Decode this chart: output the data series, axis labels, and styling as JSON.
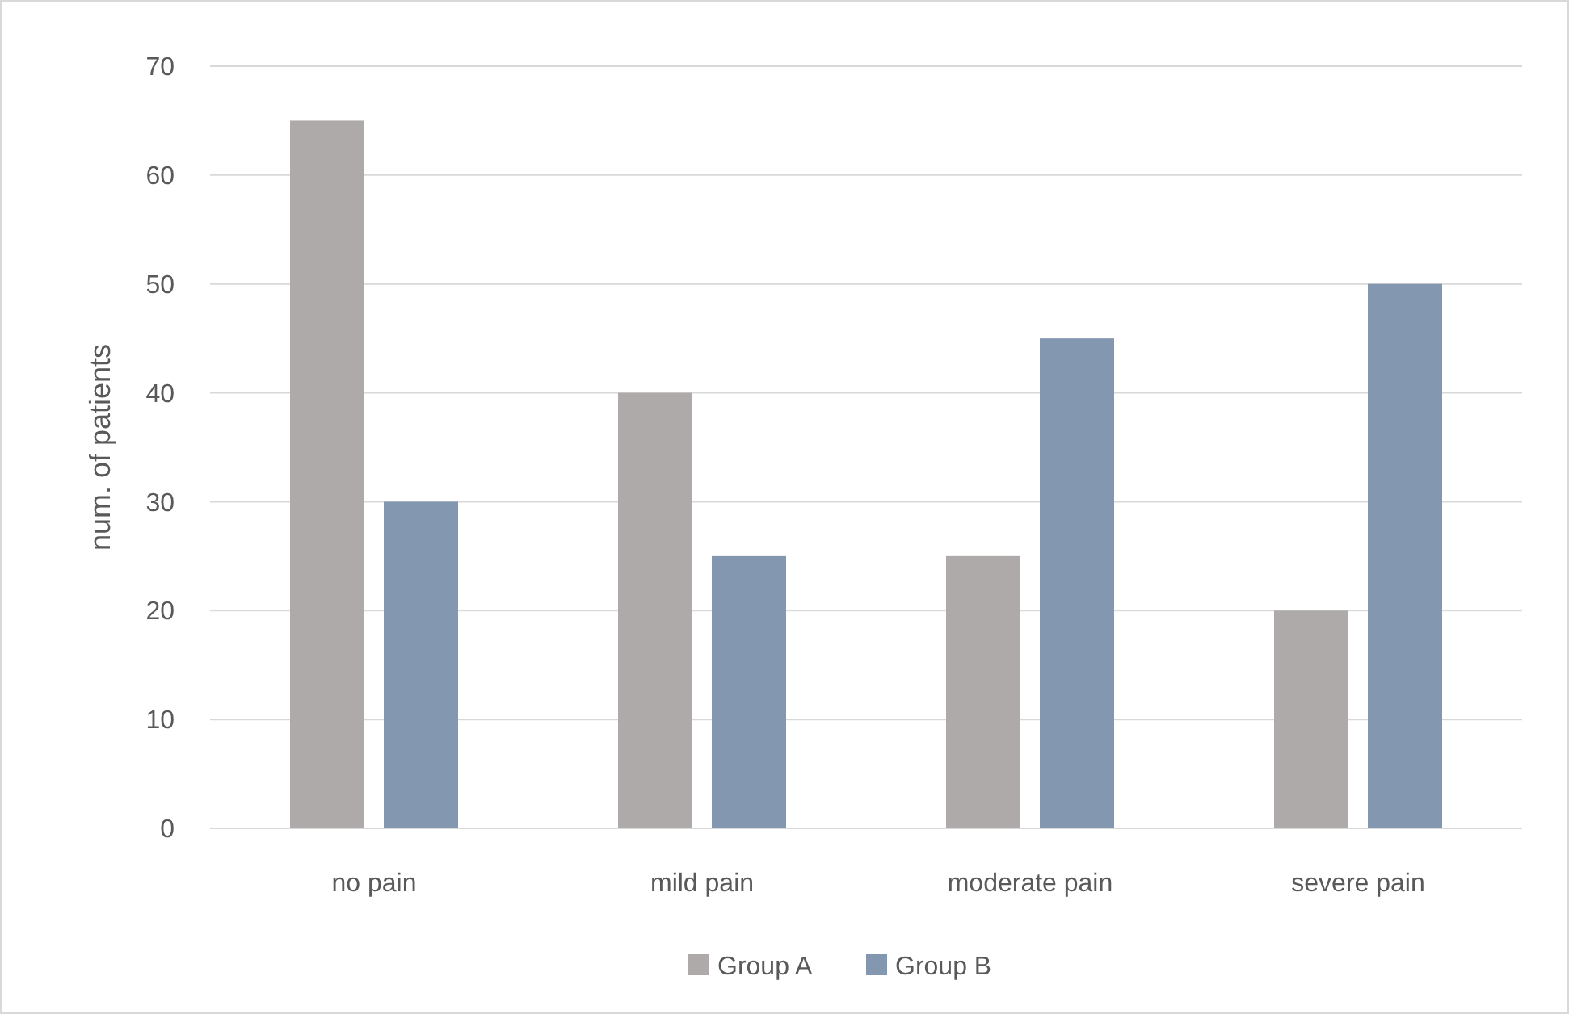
{
  "chart_data": {
    "type": "bar",
    "ylabel": "num. of patients",
    "categories": [
      "no pain",
      "mild pain",
      "moderate pain",
      "severe pain"
    ],
    "series": [
      {
        "name": "Group A",
        "color": "#aeaaaa",
        "values": [
          65,
          40,
          25,
          20
        ]
      },
      {
        "name": "Group B",
        "color": "#8497b0",
        "values": [
          30,
          25,
          45,
          50
        ]
      }
    ],
    "ylim": [
      0,
      70
    ],
    "yticks": [
      0,
      10,
      20,
      30,
      40,
      50,
      60,
      70
    ],
    "grid": "y",
    "legend": "bottom"
  }
}
